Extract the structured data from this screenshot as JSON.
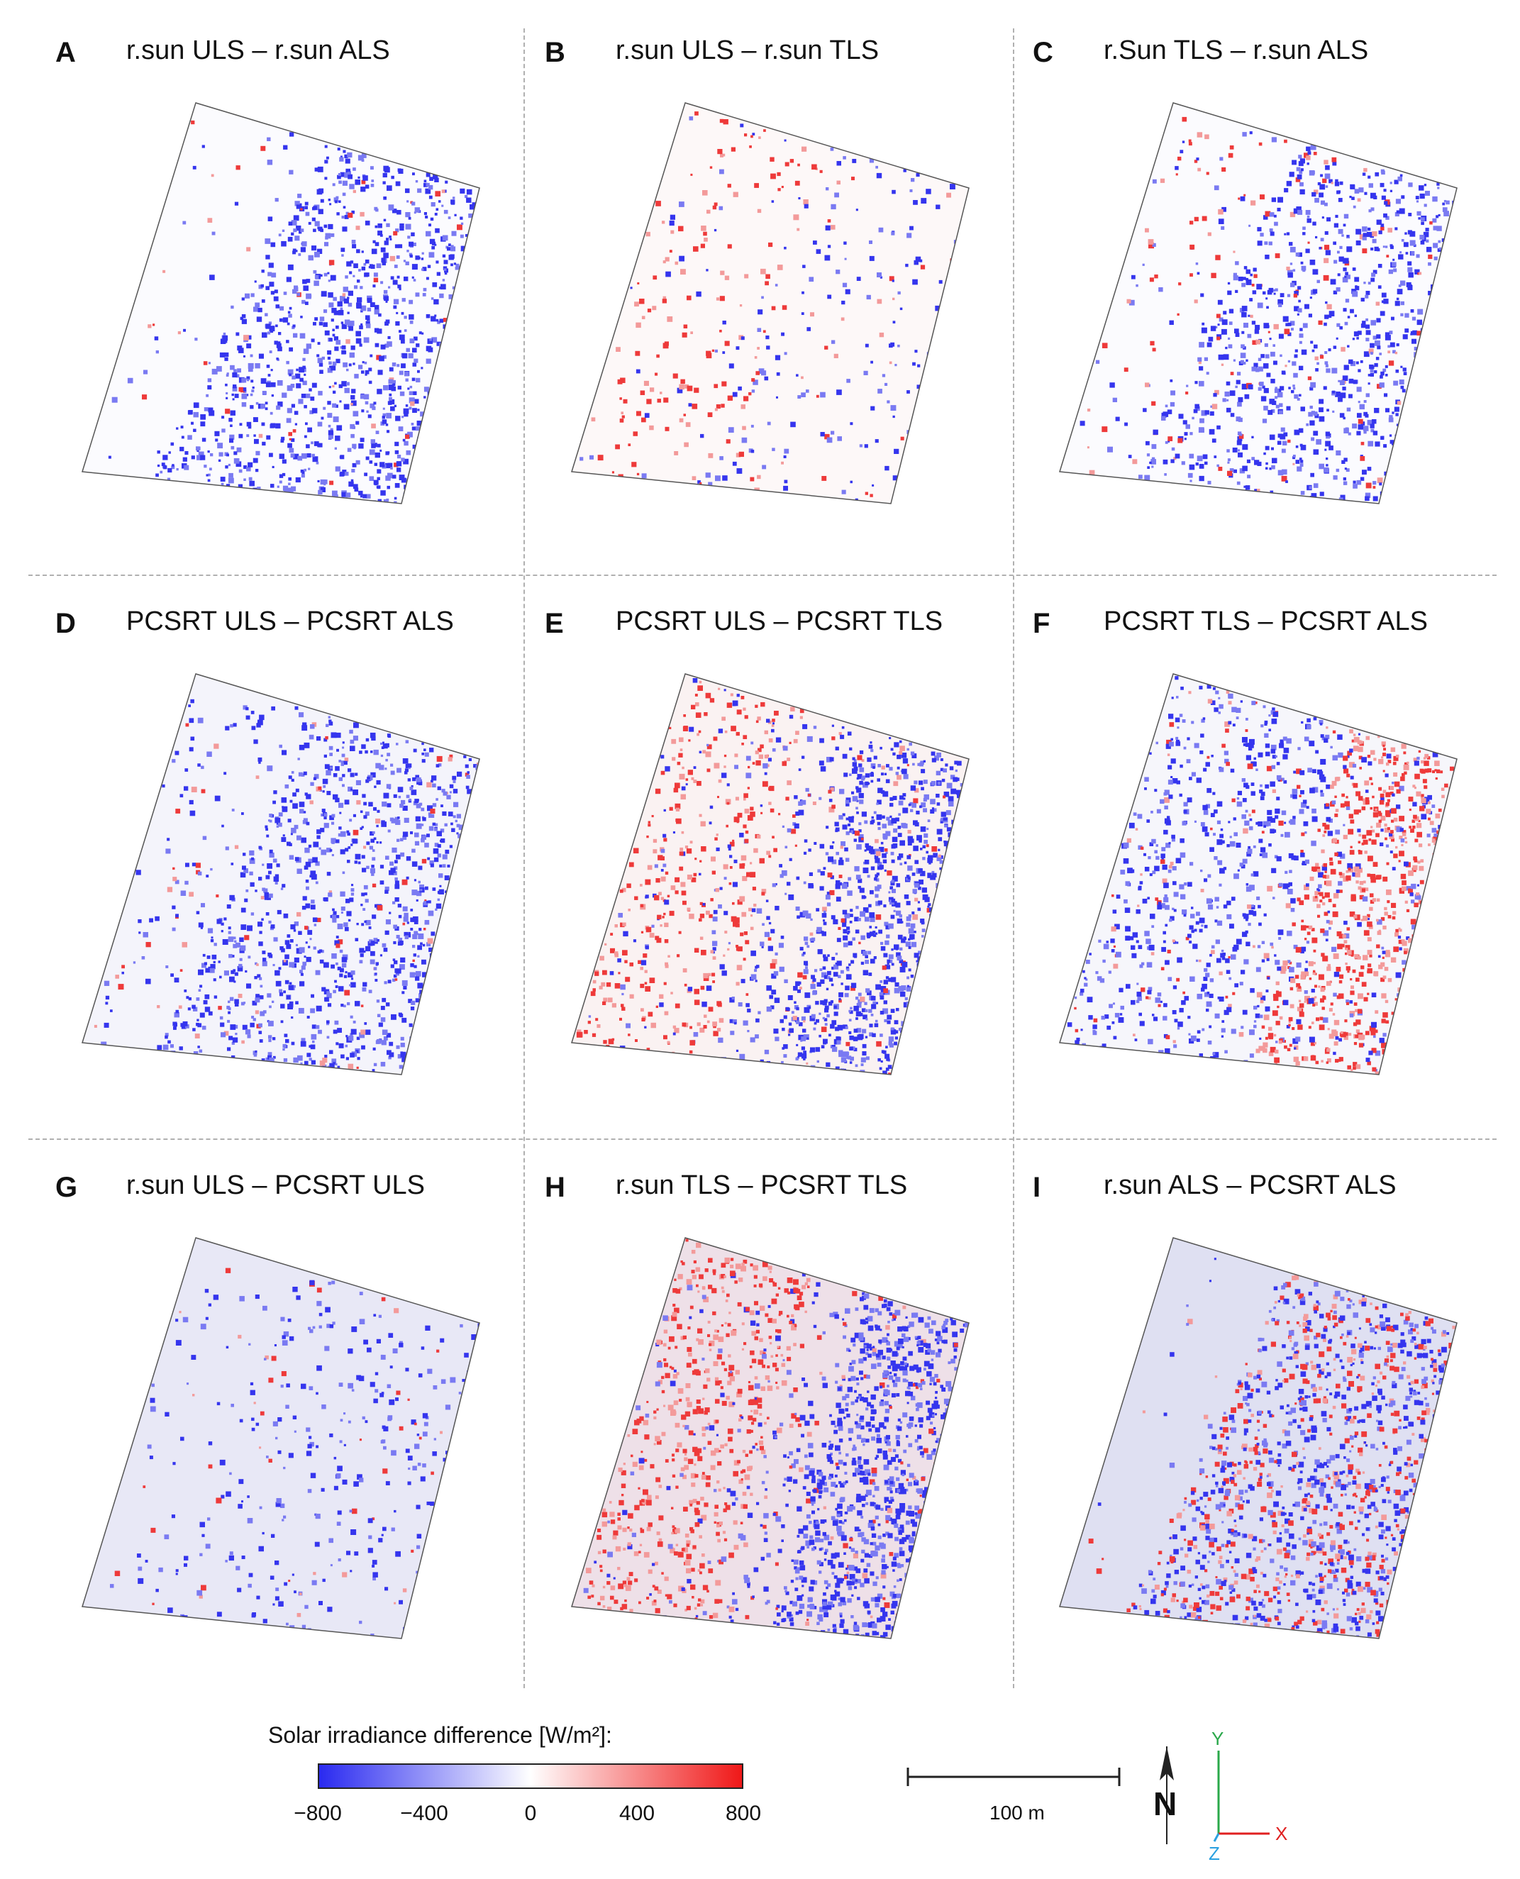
{
  "panels": [
    {
      "letter": "A",
      "title": "r.sun ULS – r.sun ALS",
      "pattern": "rsun_a"
    },
    {
      "letter": "B",
      "title": "r.sun ULS – r.sun TLS",
      "pattern": "rsun_b"
    },
    {
      "letter": "C",
      "title": "r.Sun TLS – r.sun ALS",
      "pattern": "rsun_c"
    },
    {
      "letter": "D",
      "title": "PCSRT ULS – PCSRT ALS",
      "pattern": "pc_d"
    },
    {
      "letter": "E",
      "title": "PCSRT ULS – PCSRT TLS",
      "pattern": "pc_e"
    },
    {
      "letter": "F",
      "title": "PCSRT TLS – PCSRT ALS",
      "pattern": "pc_f"
    },
    {
      "letter": "G",
      "title": "r.sun ULS – PCSRT ULS",
      "pattern": "cmp_g"
    },
    {
      "letter": "H",
      "title": "r.sun TLS – PCSRT TLS",
      "pattern": "cmp_h"
    },
    {
      "letter": "I",
      "title": "r.sun ALS – PCSRT ALS",
      "pattern": "cmp_i"
    }
  ],
  "legend": {
    "title": "Solar irradiance difference [W/m²]:",
    "ticks": [
      "−800",
      "−400",
      "0",
      "400",
      "800"
    ],
    "tick_values": [
      -800,
      -400,
      0,
      400,
      800
    ],
    "colors": {
      "min": "#2a2af0",
      "mid": "#ffffff",
      "max": "#f01818"
    }
  },
  "scalebar": {
    "label": "100 m"
  },
  "north": {
    "label": "N"
  },
  "axes": {
    "y": "Y",
    "x": "X",
    "z": "Z",
    "y_color": "#2aa84a",
    "x_color": "#e02020",
    "z_color": "#2aa0e0"
  }
}
